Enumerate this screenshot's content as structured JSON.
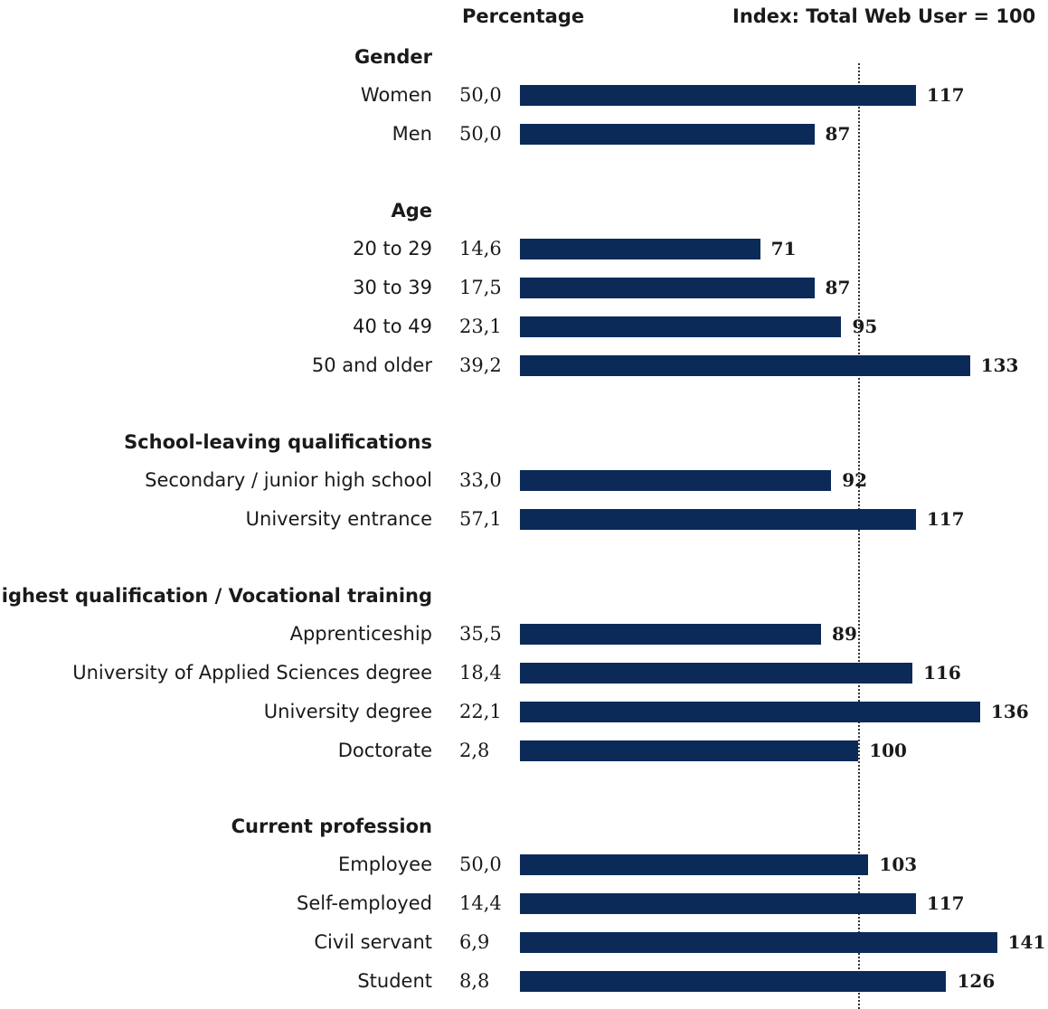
{
  "chart_data": {
    "type": "bar",
    "orientation": "horizontal",
    "headers": {
      "percentage": "Percentage",
      "index": "Index: Total Web User = 100"
    },
    "reference_index": 100,
    "index_axis_range": [
      0,
      141
    ],
    "groups": [
      {
        "title": "Gender",
        "rows": [
          {
            "label": "Women",
            "percentage": "50,0",
            "index": 117
          },
          {
            "label": "Men",
            "percentage": "50,0",
            "index": 87
          }
        ]
      },
      {
        "title": "Age",
        "rows": [
          {
            "label": "20 to 29",
            "percentage": "14,6",
            "index": 71
          },
          {
            "label": "30 to 39",
            "percentage": "17,5",
            "index": 87
          },
          {
            "label": "40 to 49",
            "percentage": "23,1",
            "index": 95
          },
          {
            "label": "50 and older",
            "percentage": "39,2",
            "index": 133
          }
        ]
      },
      {
        "title": "School-leaving qualifications",
        "rows": [
          {
            "label": "Secondary / junior high school",
            "percentage": "33,0",
            "index": 92
          },
          {
            "label": "University entrance",
            "percentage": "57,1",
            "index": 117
          }
        ]
      },
      {
        "title": "Highest qualification / Vocational training",
        "rows": [
          {
            "label": "Apprenticeship",
            "percentage": "35,5",
            "index": 89
          },
          {
            "label": "University of Applied Sciences degree",
            "percentage": "18,4",
            "index": 116
          },
          {
            "label": "University degree",
            "percentage": "22,1",
            "index": 136
          },
          {
            "label": "Doctorate",
            "percentage": "2,8",
            "index": 100
          }
        ]
      },
      {
        "title": "Current profession",
        "rows": [
          {
            "label": "Employee",
            "percentage": "50,0",
            "index": 103
          },
          {
            "label": "Self-employed",
            "percentage": "14,4",
            "index": 117
          },
          {
            "label": "Civil servant",
            "percentage": "6,9",
            "index": 141
          },
          {
            "label": "Student",
            "percentage": "8,8",
            "index": 126
          }
        ]
      }
    ],
    "colors": {
      "bar": "#0b2a58",
      "reference_line": "#333333"
    }
  }
}
